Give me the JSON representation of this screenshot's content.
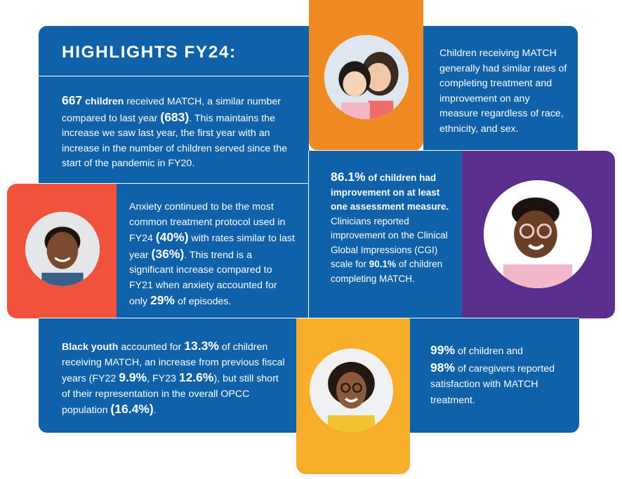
{
  "title": "HIGHLIGHTS FY24:",
  "colors": {
    "panel_blue": "#0f62aa",
    "orange": "#ef8a22",
    "coral": "#f0533a",
    "purple": "#5a2e8c",
    "gold": "#f7ac2a"
  },
  "block_children": {
    "n1": "667",
    "t1": " children",
    "t2": " received MATCH, a similar number compared to last year ",
    "n2": "(683)",
    "t3": ". This maintains the increase we saw last year, the first year with an increase in the number of children served since the start of the pandemic in FY20."
  },
  "block_rates": {
    "text": "Children receiving MATCH generally had similar rates of completing treatment and improvement on any measure regardless of race, ethnicity, and sex."
  },
  "block_anxiety": {
    "t1": "Anxiety continued to be the most common treatment protocol used in FY24 ",
    "n1": "(40%)",
    "t2": " with rates similar to last year ",
    "n2": "(36%)",
    "t3": ". This trend is a significant increase compared to FY21 when anxiety accounted for only ",
    "n3": "29%",
    "t4": " of episodes."
  },
  "block_improvement": {
    "n1": "86.1%",
    "b1": " of children had improvement on at least one assessment measure.",
    "t1": " Clinicians reported improvement on the Clinical Global Impressions (CGI) scale for ",
    "n2": "90.1%",
    "t2": " of children completing MATCH."
  },
  "block_black_youth": {
    "b1": "Black youth",
    "t1": " accounted for ",
    "n1": "13.3%",
    "t2": " of children receiving MATCH, an increase from previous fiscal years (FY22 ",
    "n2": "9.9%",
    "t3": ", FY23 ",
    "n3": "12.6%",
    "t4": "), but still short of their representation in the overall OPCC population ",
    "n4": "(16.4%)",
    "t5": "."
  },
  "block_satisfaction": {
    "n1": "99%",
    "t1": " of children and",
    "n2": "98%",
    "t2": " of caregivers reported satisfaction with MATCH treatment."
  }
}
